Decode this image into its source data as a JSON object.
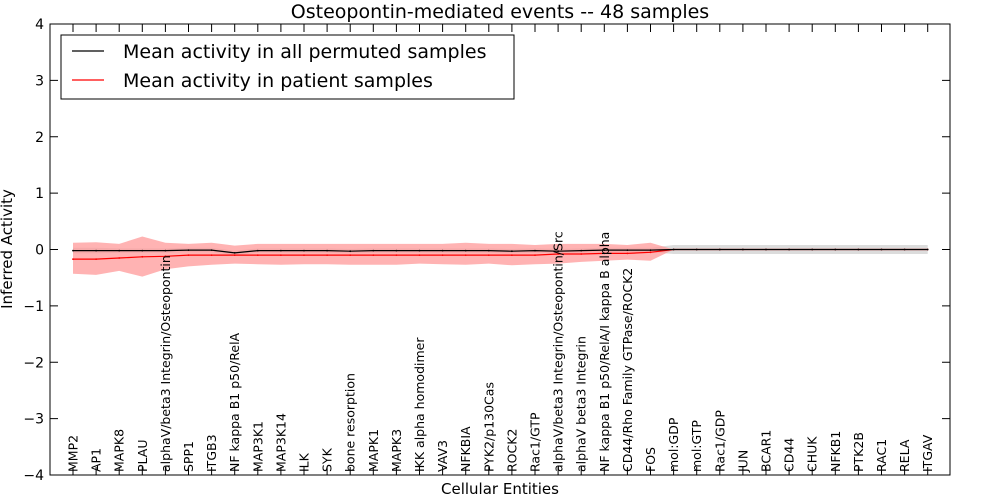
{
  "chart_data": {
    "type": "line",
    "title": "Osteopontin-mediated events -- 48 samples",
    "xlabel": "Cellular Entities",
    "ylabel": "Inferred Activity",
    "ylim": [
      -4,
      4
    ],
    "yticks": [
      -4,
      -3,
      -2,
      -1,
      0,
      1,
      2,
      3,
      4
    ],
    "ytick_labels": [
      "−4",
      "−3",
      "−2",
      "−1",
      "0",
      "1",
      "2",
      "3",
      "4"
    ],
    "grid": false,
    "legend_position": "top-left",
    "categories": [
      "MMP2",
      "AP1",
      "MAPK8",
      "PLAU",
      "alphaV/beta3 Integrin/Osteopontin",
      "SPP1",
      "ITGB3",
      "NF kappa B1 p50/RelA",
      "MAP3K1",
      "MAP3K14",
      "ILK",
      "SYK",
      "bone resorption",
      "MAPK1",
      "MAPK3",
      "IKK alpha homodimer",
      "VAV3",
      "NFKBIA",
      "PYK2/p130Cas",
      "ROCK2",
      "Rac1/GTP",
      "alphaV/beta3 Integrin/Osteopontin/Src",
      "alphaV beta3 Integrin",
      "NF kappa B1 p50/RelA/I kappa B alpha",
      "CD44/Rho Family GTPase/ROCK2",
      "FOS",
      "mol:GDP",
      "mol:GTP",
      "Rac1/GDP",
      "JUN",
      "BCAR1",
      "CD44",
      "CHUK",
      "NFKB1",
      "PTK2B",
      "RAC1",
      "RELA",
      "ITGAV"
    ],
    "series": [
      {
        "name": "Mean activity in all permuted samples",
        "color": "#000000",
        "values": [
          -0.02,
          -0.02,
          -0.02,
          -0.02,
          -0.02,
          -0.01,
          -0.01,
          -0.06,
          -0.02,
          -0.02,
          -0.02,
          -0.02,
          -0.03,
          -0.02,
          -0.02,
          -0.02,
          -0.02,
          -0.02,
          -0.02,
          -0.03,
          -0.02,
          -0.03,
          -0.02,
          -0.01,
          -0.01,
          -0.01,
          0.0,
          0.0,
          0.0,
          0.0,
          0.0,
          0.0,
          0.0,
          0.0,
          0.0,
          0.0,
          0.0,
          0.0
        ],
        "band": {
          "lower": [
            -0.07,
            -0.07,
            -0.06,
            -0.06,
            -0.06,
            -0.05,
            -0.05,
            -0.1,
            -0.06,
            -0.06,
            -0.06,
            -0.06,
            -0.07,
            -0.06,
            -0.06,
            -0.06,
            -0.06,
            -0.06,
            -0.06,
            -0.07,
            -0.06,
            -0.07,
            -0.06,
            -0.05,
            -0.05,
            -0.05,
            -0.08,
            -0.08,
            -0.08,
            -0.08,
            -0.08,
            -0.08,
            -0.08,
            -0.08,
            -0.08,
            -0.08,
            -0.08,
            -0.08
          ],
          "upper": [
            0.03,
            0.03,
            0.02,
            0.02,
            0.02,
            0.03,
            0.03,
            -0.02,
            0.02,
            0.02,
            0.02,
            0.02,
            0.01,
            0.02,
            0.02,
            0.02,
            0.02,
            0.02,
            0.02,
            0.01,
            0.02,
            0.01,
            0.02,
            0.03,
            0.03,
            0.03,
            0.08,
            0.08,
            0.08,
            0.08,
            0.08,
            0.08,
            0.08,
            0.08,
            0.08,
            0.08,
            0.08,
            0.08
          ],
          "color": "#c0c0c0"
        }
      },
      {
        "name": "Mean activity in patient samples",
        "color": "#ff0000",
        "values": [
          -0.17,
          -0.17,
          -0.15,
          -0.13,
          -0.12,
          -0.1,
          -0.1,
          -0.1,
          -0.1,
          -0.1,
          -0.1,
          -0.1,
          -0.1,
          -0.1,
          -0.1,
          -0.1,
          -0.1,
          -0.1,
          -0.1,
          -0.1,
          -0.1,
          -0.08,
          -0.08,
          -0.07,
          -0.07,
          -0.05,
          0.0,
          0.0,
          0.0,
          0.0,
          0.0,
          0.0,
          0.0,
          0.0,
          0.0,
          0.0,
          0.0,
          0.0
        ],
        "band": {
          "lower": [
            -0.43,
            -0.45,
            -0.38,
            -0.48,
            -0.35,
            -0.3,
            -0.27,
            -0.25,
            -0.26,
            -0.27,
            -0.26,
            -0.26,
            -0.27,
            -0.27,
            -0.27,
            -0.25,
            -0.26,
            -0.27,
            -0.25,
            -0.28,
            -0.26,
            -0.25,
            -0.22,
            -0.2,
            -0.18,
            -0.2,
            0.0,
            0.0,
            0.0,
            0.0,
            0.0,
            0.0,
            0.0,
            0.0,
            0.0,
            0.0,
            0.0,
            0.0
          ],
          "upper": [
            0.12,
            0.13,
            0.1,
            0.23,
            0.12,
            0.1,
            0.12,
            0.07,
            0.1,
            0.1,
            0.1,
            0.1,
            0.1,
            0.1,
            0.1,
            0.1,
            0.1,
            0.12,
            0.1,
            0.1,
            0.08,
            0.1,
            0.1,
            0.1,
            0.08,
            0.12,
            0.0,
            0.0,
            0.0,
            0.0,
            0.0,
            0.0,
            0.0,
            0.0,
            0.0,
            0.0,
            0.0,
            0.0
          ],
          "color": "#ff9a9a"
        }
      }
    ]
  }
}
